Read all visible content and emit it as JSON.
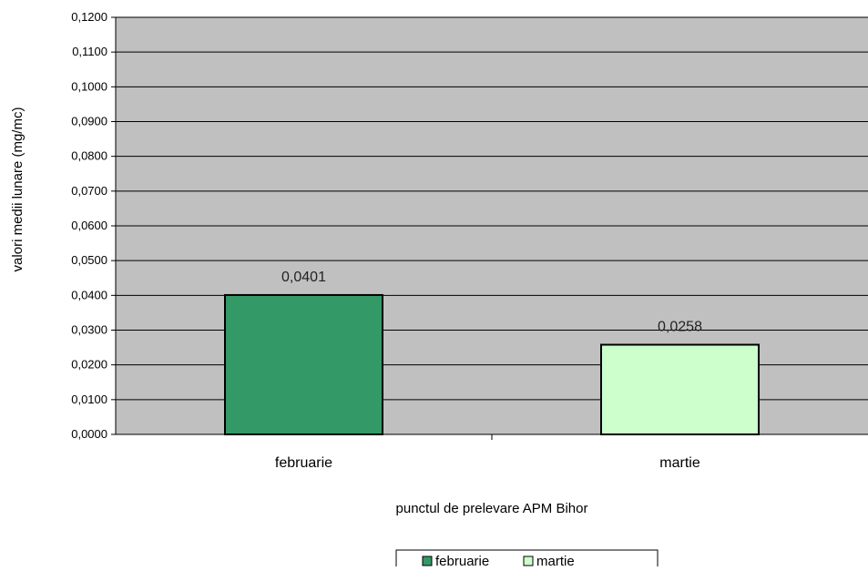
{
  "chart_data": {
    "type": "bar",
    "title": "",
    "xlabel": "punctul de prelevare APM Bihor",
    "ylabel": "valori medii lunare (mg/mc)",
    "ylim": [
      0,
      0.12
    ],
    "ytick_step": 0.01,
    "ytick_labels": [
      "0,0000",
      "0,0100",
      "0,0200",
      "0,0300",
      "0,0400",
      "0,0500",
      "0,0600",
      "0,0700",
      "0,0800",
      "0,0900",
      "0,1000",
      "0,1100",
      "0,1200"
    ],
    "categories": [
      "februarie",
      "martie"
    ],
    "values": [
      0.0401,
      0.0258
    ],
    "data_labels": [
      "0,0401",
      "0,0258"
    ],
    "bar_colors": [
      "#339966",
      "#ccffcc"
    ],
    "plot_background": "#c0c0c0",
    "gridlines": true,
    "legend": {
      "position": "bottom",
      "entries": [
        "februarie",
        "martie"
      ]
    }
  }
}
